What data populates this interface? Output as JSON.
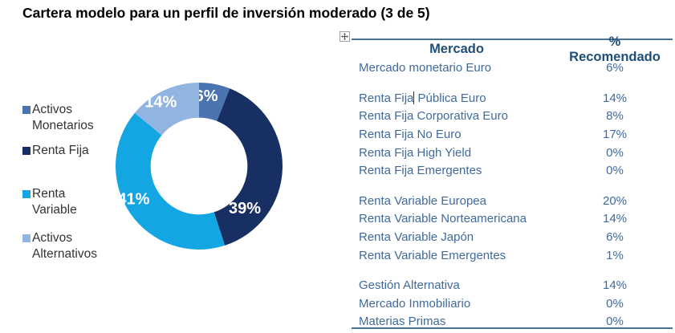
{
  "title": "Cartera modelo para un perfil de inversión moderado (3 de 5)",
  "chart_data": {
    "type": "pie",
    "subtype": "donut",
    "hole_ratio": 0.58,
    "start_angle_deg": 0,
    "direction": "clockwise",
    "legend_position": "left",
    "categories": [
      "Activos Monetarios",
      "Renta Fija",
      "Renta Variable",
      "Activos Alternativos"
    ],
    "values": [
      6,
      39,
      41,
      14
    ],
    "slice_colors": [
      "#4a74b0",
      "#182f63",
      "#14a5e3",
      "#92b4e0"
    ],
    "data_labels": [
      "6%",
      "39%",
      "41%",
      "14%"
    ],
    "data_label_color": "#ffffff",
    "label_layout": [
      {
        "angle": 6,
        "r": 0.84
      },
      {
        "angle": 133,
        "r": 0.75
      },
      {
        "angle": 243,
        "r": 0.88
      },
      {
        "angle": 329,
        "r": 0.89
      }
    ]
  },
  "table": {
    "columns": [
      "Mercado",
      "% Recomendado"
    ],
    "groups": [
      {
        "rows": [
          {
            "market": "Mercado monetario Euro",
            "pct": "6%"
          }
        ]
      },
      {
        "rows": [
          {
            "market": "Renta Fija Pública Euro",
            "pct": "14%"
          },
          {
            "market": "Renta Fija Corporativa Euro",
            "pct": "8%"
          },
          {
            "market": "Renta Fija No Euro",
            "pct": "17%"
          },
          {
            "market": "Renta Fija High Yield",
            "pct": "0%"
          },
          {
            "market": "Renta Fija Emergentes",
            "pct": "0%"
          }
        ]
      },
      {
        "rows": [
          {
            "market": "Renta Variable Europea",
            "pct": "20%"
          },
          {
            "market": "Renta Variable Norteamericana",
            "pct": "14%"
          },
          {
            "market": "Renta Variable Japón",
            "pct": "6%"
          },
          {
            "market": "Renta Variable Emergentes",
            "pct": "1%"
          }
        ]
      },
      {
        "rows": [
          {
            "market": "Gestión Alternativa",
            "pct": "14%"
          },
          {
            "market": "Mercado Inmobiliario",
            "pct": "0%"
          },
          {
            "market": "Materias Primas",
            "pct": "0%"
          }
        ]
      }
    ],
    "text_cursor": {
      "group_index": 1,
      "row_index": 0,
      "after_chars": 10
    }
  },
  "icons": {
    "table_move_handle": "four-way-move-arrow"
  },
  "colors": {
    "title_text": "#000000",
    "table_text": "#3f6a9d",
    "table_header_text": "#1f4e79",
    "table_border": "#47718f",
    "legend_text": "#333333"
  }
}
